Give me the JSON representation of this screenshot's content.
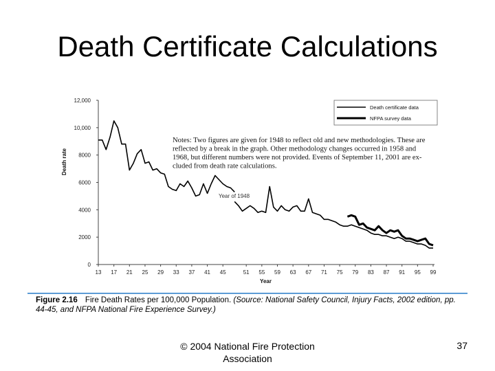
{
  "slide": {
    "title": "Death Certificate Calculations",
    "caption_label": "Figure 2.16",
    "caption_title": "Fire Death Rates per 100,000 Population.",
    "caption_source": "(Source: National Safety Council, Injury Facts, 2002 edition, pp. 44-45, and NFPA National Fire Experience Survey.)",
    "footer": "© 2004 National Fire Protection Association",
    "page_number": "37"
  },
  "chart_data": {
    "type": "line",
    "title": "",
    "xlabel": "Year",
    "ylabel": "Death rate",
    "xlim": [
      13,
      99
    ],
    "ylim": [
      0,
      12000
    ],
    "x_ticks": [
      "13",
      "17",
      "21",
      "25",
      "29",
      "33",
      "37",
      "41",
      "45",
      "51",
      "55",
      "59",
      "63",
      "67",
      "71",
      "75",
      "79",
      "83",
      "87",
      "91",
      "95",
      "99"
    ],
    "y_ticks": [
      "0",
      "2000",
      "4000",
      "6000",
      "8000",
      "10,000",
      "12,000"
    ],
    "grid": false,
    "legend_position": "top-right",
    "notes": [
      "Notes: Two figures are given for 1948 to reflect old and new methodologies. These are",
      "reflected by a break in the graph. Other methodology changes occurred in 1958 and",
      "1968, but different numbers were not provided. Events of September 11, 2001 are ex-",
      "cluded from death rate calculations."
    ],
    "annotation": "Year of 1948",
    "series": [
      {
        "name": "Death certificate data",
        "style": "thin",
        "color": "#000000",
        "segments": [
          [
            [
              13,
              9100
            ],
            [
              14,
              9100
            ],
            [
              15,
              8400
            ],
            [
              16,
              9300
            ],
            [
              17,
              10500
            ],
            [
              18,
              10000
            ],
            [
              19,
              8800
            ],
            [
              20,
              8800
            ],
            [
              21,
              6900
            ],
            [
              22,
              7400
            ],
            [
              23,
              8100
            ],
            [
              24,
              8400
            ],
            [
              25,
              7400
            ],
            [
              26,
              7500
            ],
            [
              27,
              6900
            ],
            [
              28,
              7000
            ],
            [
              29,
              6700
            ],
            [
              30,
              6600
            ],
            [
              31,
              5700
            ],
            [
              32,
              5500
            ],
            [
              33,
              5400
            ],
            [
              34,
              5900
            ],
            [
              35,
              5700
            ],
            [
              36,
              6100
            ],
            [
              37,
              5600
            ],
            [
              38,
              5000
            ],
            [
              39,
              5100
            ],
            [
              40,
              5900
            ],
            [
              41,
              5200
            ],
            [
              42,
              5900
            ],
            [
              43,
              6500
            ],
            [
              44,
              6200
            ],
            [
              45,
              5900
            ],
            [
              46,
              5700
            ],
            [
              47,
              5600
            ],
            [
              48,
              5300
            ]
          ],
          [
            [
              48,
              4600
            ],
            [
              49,
              4300
            ],
            [
              50,
              3900
            ],
            [
              51,
              4100
            ],
            [
              52,
              4300
            ],
            [
              53,
              4100
            ],
            [
              54,
              3800
            ],
            [
              55,
              3900
            ],
            [
              56,
              3800
            ],
            [
              57,
              5700
            ],
            [
              58,
              4200
            ],
            [
              59,
              3900
            ],
            [
              60,
              4300
            ],
            [
              61,
              4000
            ],
            [
              62,
              3900
            ],
            [
              63,
              4200
            ],
            [
              64,
              4300
            ],
            [
              65,
              3900
            ],
            [
              66,
              3900
            ],
            [
              67,
              4800
            ],
            [
              68,
              3800
            ],
            [
              69,
              3700
            ],
            [
              70,
              3600
            ],
            [
              71,
              3300
            ],
            [
              72,
              3300
            ],
            [
              73,
              3200
            ],
            [
              74,
              3100
            ],
            [
              75,
              2900
            ],
            [
              76,
              2800
            ],
            [
              77,
              2800
            ],
            [
              78,
              2900
            ],
            [
              79,
              2800
            ],
            [
              80,
              2700
            ],
            [
              81,
              2600
            ],
            [
              82,
              2500
            ],
            [
              83,
              2300
            ],
            [
              84,
              2200
            ],
            [
              85,
              2200
            ],
            [
              86,
              2100
            ],
            [
              87,
              2100
            ],
            [
              88,
              2000
            ],
            [
              89,
              1900
            ],
            [
              90,
              2000
            ],
            [
              91,
              1900
            ],
            [
              92,
              1700
            ],
            [
              93,
              1700
            ],
            [
              94,
              1600
            ],
            [
              95,
              1500
            ],
            [
              96,
              1500
            ],
            [
              97,
              1400
            ],
            [
              98,
              1200
            ],
            [
              99,
              1200
            ]
          ]
        ]
      },
      {
        "name": "NFPA survey data",
        "style": "thick",
        "color": "#000000",
        "segments": [
          [
            [
              77,
              3500
            ],
            [
              78,
              3600
            ],
            [
              79,
              3500
            ],
            [
              80,
              2900
            ],
            [
              81,
              3000
            ],
            [
              82,
              2700
            ],
            [
              83,
              2600
            ],
            [
              84,
              2500
            ],
            [
              85,
              2800
            ],
            [
              86,
              2500
            ],
            [
              87,
              2300
            ],
            [
              88,
              2500
            ],
            [
              89,
              2400
            ],
            [
              90,
              2500
            ],
            [
              91,
              2100
            ],
            [
              92,
              1900
            ],
            [
              93,
              1900
            ],
            [
              94,
              1800
            ],
            [
              95,
              1700
            ],
            [
              96,
              1800
            ],
            [
              97,
              1900
            ],
            [
              98,
              1500
            ],
            [
              99,
              1400
            ]
          ]
        ]
      }
    ]
  }
}
